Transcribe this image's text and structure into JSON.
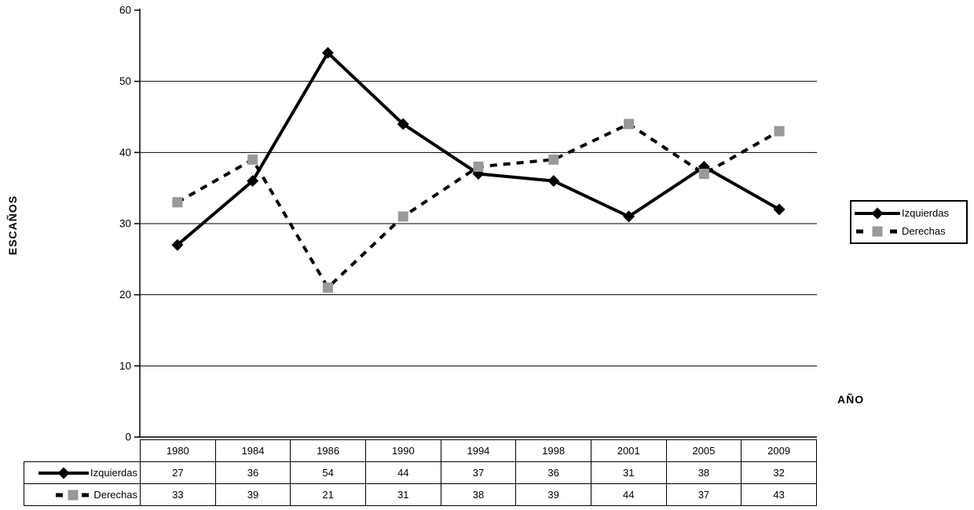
{
  "chart_data": {
    "type": "line",
    "title": "",
    "xlabel": "AÑO",
    "ylabel": "ESCAÑOS",
    "categories": [
      "1980",
      "1984",
      "1986",
      "1990",
      "1994",
      "1998",
      "2001",
      "2005",
      "2009"
    ],
    "series": [
      {
        "name": "Izquierdas",
        "values": [
          27,
          36,
          54,
          44,
          37,
          36,
          31,
          38,
          32
        ],
        "line": "solid",
        "marker": "diamond",
        "line_color": "#000000",
        "marker_color": "#000000"
      },
      {
        "name": "Derechas",
        "values": [
          33,
          39,
          21,
          31,
          38,
          39,
          44,
          37,
          43
        ],
        "line": "dashed",
        "marker": "square",
        "line_color": "#000000",
        "marker_color": "#999999"
      }
    ],
    "ylim": [
      0,
      60
    ],
    "ytick_step": 10,
    "yticks": [
      0,
      10,
      20,
      30,
      40,
      50,
      60
    ],
    "grid": true,
    "gridline_color": "#000000",
    "legend_position": "right",
    "data_table_shown": true
  }
}
